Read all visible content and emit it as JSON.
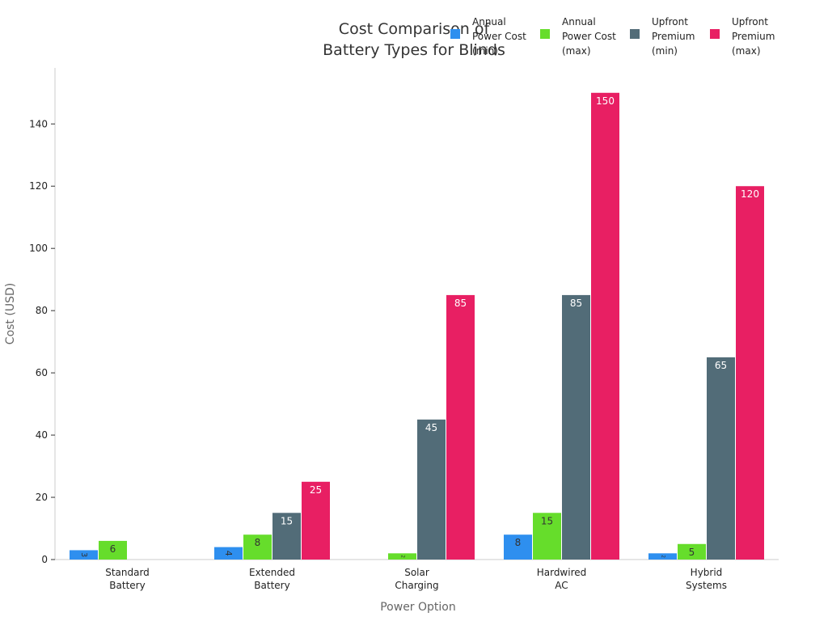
{
  "chart_data": {
    "type": "bar",
    "title_lines": [
      "Cost Comparison of",
      "Battery Types for Blinds"
    ],
    "xlabel": "Power Option",
    "ylabel": "Cost (USD)",
    "ylim": [
      0,
      158
    ],
    "yticks": [
      0,
      20,
      40,
      60,
      80,
      100,
      120,
      140
    ],
    "grid": false,
    "legend_position": "top-right",
    "categories": [
      [
        "Standard",
        "Battery"
      ],
      [
        "Extended",
        "Battery"
      ],
      [
        "Solar",
        "Charging"
      ],
      [
        "Hardwired",
        "AC"
      ],
      [
        "Hybrid",
        "Systems"
      ]
    ],
    "series": [
      {
        "name_lines": [
          "Annual",
          "Power Cost",
          "(min)"
        ],
        "color": "#2E8FEF",
        "label_color": "#333333",
        "values": [
          3,
          4,
          0,
          8,
          2
        ]
      },
      {
        "name_lines": [
          "Annual",
          "Power Cost",
          "(max)"
        ],
        "color": "#66DD2B",
        "label_color": "#333333",
        "values": [
          6,
          8,
          2,
          15,
          5
        ]
      },
      {
        "name_lines": [
          "Upfront",
          "Premium",
          "(min)"
        ],
        "color": "#526C78",
        "label_color": "#ffffff",
        "values": [
          0,
          15,
          45,
          85,
          65
        ]
      },
      {
        "name_lines": [
          "Upfront",
          "Premium",
          "(max)"
        ],
        "color": "#E81F63",
        "label_color": "#ffffff",
        "values": [
          0,
          25,
          85,
          150,
          120
        ]
      }
    ]
  }
}
